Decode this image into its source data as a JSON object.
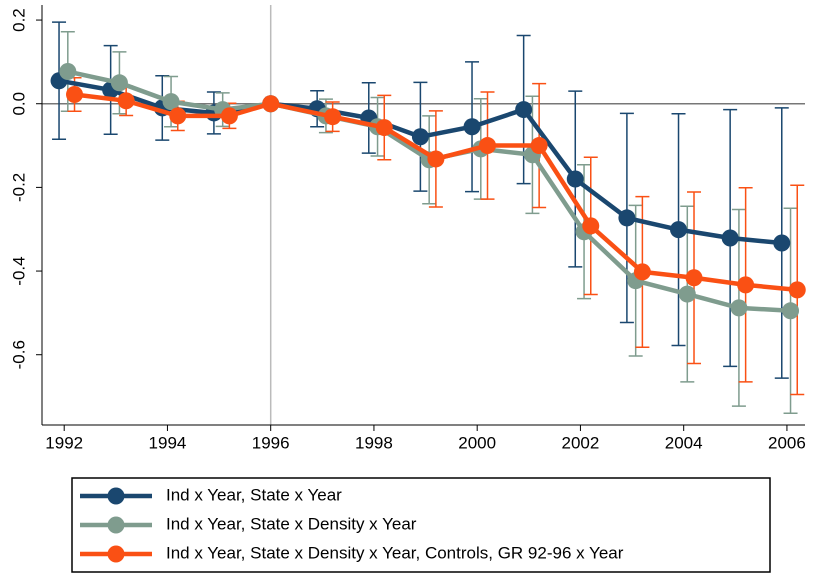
{
  "chart_data": {
    "type": "line",
    "xlim": [
      1991.57,
      2006.35
    ],
    "xticks": [
      1992,
      1994,
      1996,
      1998,
      2000,
      2002,
      2004,
      2006
    ],
    "ylim": [
      -0.768,
      0.236
    ],
    "yticks": [
      {
        "value": 0.2,
        "label": "0.2"
      },
      {
        "value": 0,
        "label": "0.0"
      },
      {
        "value": -0.2,
        "label": "-0.2"
      },
      {
        "value": -0.4,
        "label": "-0.4"
      },
      {
        "value": -0.6,
        "label": "-0.6"
      }
    ],
    "reference_lines": {
      "y": 0,
      "x": 1996
    },
    "series": [
      {
        "name": "Ind x Year, State x Year",
        "color": "#1a476f",
        "x": [
          1991.9,
          1992.9,
          1993.9,
          1994.9,
          1996,
          1996.9,
          1997.9,
          1998.9,
          1999.9,
          2000.9,
          2001.9,
          2002.9,
          2003.9,
          2004.9,
          2005.9
        ],
        "values": [
          0.055,
          0.033,
          -0.01,
          -0.022,
          0,
          -0.012,
          -0.034,
          -0.079,
          -0.055,
          -0.014,
          -0.18,
          -0.273,
          -0.301,
          -0.321,
          -0.333
        ],
        "errors": [
          0.14,
          0.106,
          0.077,
          0.05,
          0,
          0.043,
          0.084,
          0.13,
          0.155,
          0.177,
          0.21,
          0.25,
          0.277,
          0.307,
          0.323
        ]
      },
      {
        "name": "Ind x Year, State x Density x Year",
        "color": "#7f9c8e",
        "x": [
          1992.07,
          1993.07,
          1994.07,
          1995.07,
          1996,
          1997.07,
          1998.07,
          1999.07,
          2000.07,
          2001.07,
          2002.07,
          2003.07,
          2004.07,
          2005.07,
          2006.07
        ],
        "values": [
          0.077,
          0.05,
          0.005,
          -0.014,
          0,
          -0.029,
          -0.055,
          -0.134,
          -0.108,
          -0.122,
          -0.306,
          -0.423,
          -0.455,
          -0.488,
          -0.495
        ],
        "errors": [
          0.095,
          0.074,
          0.06,
          0.04,
          0,
          0.04,
          0.07,
          0.105,
          0.12,
          0.14,
          0.16,
          0.18,
          0.21,
          0.235,
          0.245
        ]
      },
      {
        "name": "Ind x Year, State x Density x Year, Controls, GR 92-96 x Year",
        "color": "#fa5014",
        "x": [
          1992.2,
          1993.2,
          1994.2,
          1995.2,
          1996,
          1997.2,
          1998.2,
          1999.2,
          2000.2,
          2001.2,
          2002.2,
          2003.2,
          2004.2,
          2005.2,
          2006.2
        ],
        "values": [
          0.022,
          0.007,
          -0.029,
          -0.029,
          0,
          -0.031,
          -0.057,
          -0.132,
          -0.1,
          -0.1,
          -0.292,
          -0.402,
          -0.416,
          -0.433,
          -0.445
        ],
        "errors": [
          0.04,
          0.035,
          0.035,
          0.03,
          0,
          0.035,
          0.077,
          0.115,
          0.128,
          0.148,
          0.164,
          0.18,
          0.205,
          0.232,
          0.25
        ]
      }
    ]
  }
}
